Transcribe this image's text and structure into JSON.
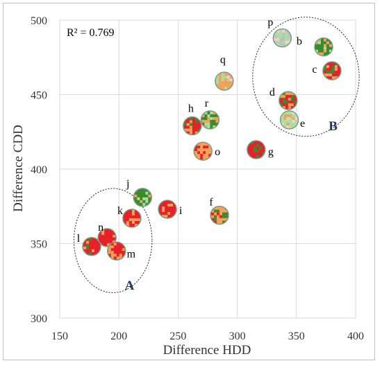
{
  "chart_data": {
    "type": "scatter",
    "title": "",
    "xlabel": "Difference HDD",
    "ylabel": "Difference CDD",
    "xlim": [
      150,
      400
    ],
    "ylim": [
      300,
      500
    ],
    "xticks": [
      "150",
      "200",
      "250",
      "300",
      "350",
      "400"
    ],
    "yticks": [
      "300",
      "350",
      "400",
      "450",
      "500"
    ],
    "grid": true,
    "annotation": "R² = 0.769",
    "points": [
      {
        "label": "b",
        "x": 373,
        "y": 482
      },
      {
        "label": "c",
        "x": 380,
        "y": 466
      },
      {
        "label": "p",
        "x": 338,
        "y": 488
      },
      {
        "label": "q",
        "x": 289,
        "y": 459
      },
      {
        "label": "d",
        "x": 343,
        "y": 446
      },
      {
        "label": "e",
        "x": 344,
        "y": 433
      },
      {
        "label": "r",
        "x": 277,
        "y": 433
      },
      {
        "label": "h",
        "x": 262,
        "y": 429
      },
      {
        "label": "o",
        "x": 271,
        "y": 412
      },
      {
        "label": "g",
        "x": 316,
        "y": 413
      },
      {
        "label": "j",
        "x": 220,
        "y": 381
      },
      {
        "label": "i",
        "x": 241,
        "y": 373
      },
      {
        "label": "f",
        "x": 285,
        "y": 369
      },
      {
        "label": "k",
        "x": 211,
        "y": 367
      },
      {
        "label": "n",
        "x": 190,
        "y": 354
      },
      {
        "label": "l",
        "x": 177,
        "y": 348
      },
      {
        "label": "m",
        "x": 198,
        "y": 345
      }
    ],
    "groups": [
      {
        "label": "A",
        "cx": 195,
        "cy": 352,
        "rx_data": 33,
        "ry_data": 35
      },
      {
        "label": "B",
        "cx": 358,
        "cy": 462,
        "rx_data": 45,
        "ry_data": 40
      }
    ],
    "colors": {
      "green": "#3c8a2e",
      "orange": "#f4a25a",
      "red": "#e8202a",
      "lightgreen": "#a8e0a0",
      "gray": "#c0c0c0",
      "pink": "#f7d0cc"
    }
  }
}
